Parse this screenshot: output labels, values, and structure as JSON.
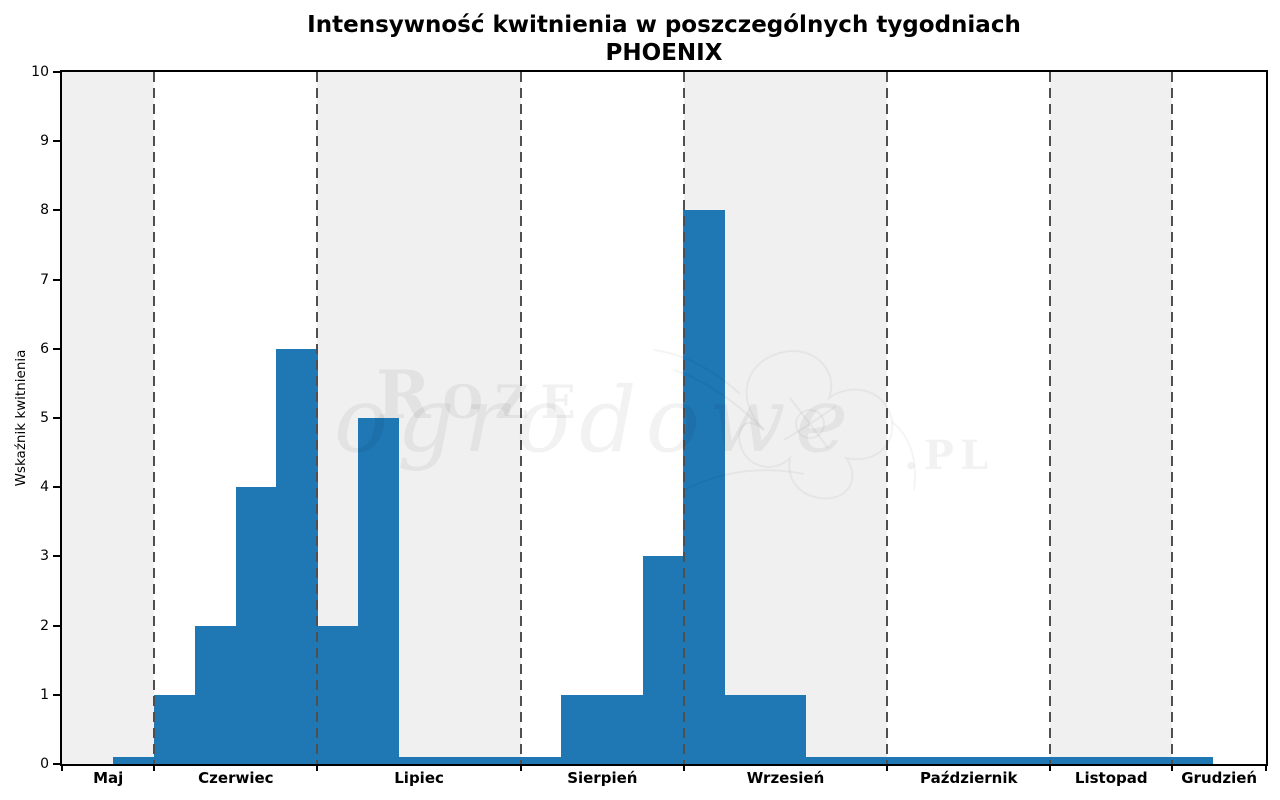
{
  "chart_data": {
    "type": "bar",
    "title": "Intensywność kwitnienia w poszczególnych tygodniach",
    "subtitle": "PHOENIX",
    "ylabel": "Wskaźnik kwitnienia",
    "xlabel": "",
    "ylim": [
      0,
      10
    ],
    "yticks": [
      "0",
      "1",
      "2",
      "3",
      "4",
      "5",
      "6",
      "7",
      "8",
      "9",
      "10"
    ],
    "legend": "none",
    "grid": "vertical dashed month separators, alternating month background shading",
    "bar_color": "#1f77b4",
    "month_shade_color": "#f0f0f0",
    "separator_color": "#4f4f4f",
    "x_unit": "tydzień (week)",
    "months": [
      {
        "name": "Maj",
        "shaded": true,
        "lead_empty_weeks": 1.27,
        "weeks": [
          0.1
        ]
      },
      {
        "name": "Czerwiec",
        "shaded": false,
        "weeks": [
          1,
          2,
          4,
          6
        ]
      },
      {
        "name": "Lipiec",
        "shaded": true,
        "weeks": [
          2,
          5,
          0.1,
          0.1,
          0.1
        ]
      },
      {
        "name": "Sierpień",
        "shaded": false,
        "weeks": [
          0.1,
          1,
          1,
          3
        ]
      },
      {
        "name": "Wrzesień",
        "shaded": true,
        "weeks": [
          8,
          1,
          1,
          0.1,
          0.1
        ]
      },
      {
        "name": "Październik",
        "shaded": false,
        "weeks": [
          0.1,
          0.1,
          0.1,
          0.1
        ]
      },
      {
        "name": "Listopad",
        "shaded": true,
        "weeks": [
          0.1,
          0.1,
          0.1
        ]
      },
      {
        "name": "Grudzień",
        "shaded": false,
        "weeks": [
          0.1
        ],
        "trail_empty_weeks": 1.3
      }
    ],
    "watermark": {
      "word1": "Roze",
      "word2": "ogrodowe",
      "suffix": ".PL"
    }
  }
}
